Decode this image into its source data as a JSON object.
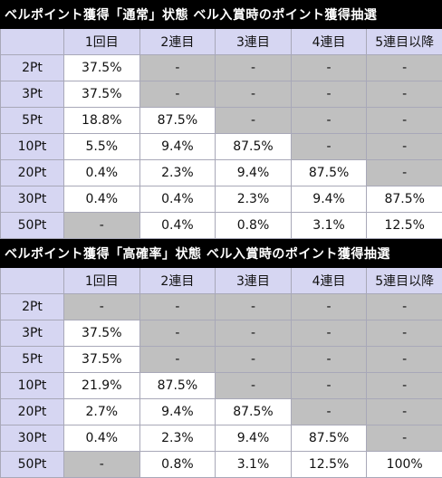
{
  "tables": [
    {
      "title": "ベルポイント獲得「通常」状態 ベル入賞時のポイント獲得抽選",
      "headers": [
        "",
        "1回目",
        "2連目",
        "3連目",
        "4連目",
        "5連目以降"
      ],
      "rows": [
        {
          "label": "2Pt",
          "cells": [
            "37.5%",
            "-",
            "-",
            "-",
            "-"
          ],
          "gray": [
            false,
            true,
            true,
            true,
            true
          ]
        },
        {
          "label": "3Pt",
          "cells": [
            "37.5%",
            "-",
            "-",
            "-",
            "-"
          ],
          "gray": [
            false,
            true,
            true,
            true,
            true
          ]
        },
        {
          "label": "5Pt",
          "cells": [
            "18.8%",
            "87.5%",
            "-",
            "-",
            "-"
          ],
          "gray": [
            false,
            false,
            true,
            true,
            true
          ]
        },
        {
          "label": "10Pt",
          "cells": [
            "5.5%",
            "9.4%",
            "87.5%",
            "-",
            "-"
          ],
          "gray": [
            false,
            false,
            false,
            true,
            true
          ]
        },
        {
          "label": "20Pt",
          "cells": [
            "0.4%",
            "2.3%",
            "9.4%",
            "87.5%",
            "-"
          ],
          "gray": [
            false,
            false,
            false,
            false,
            true
          ]
        },
        {
          "label": "30Pt",
          "cells": [
            "0.4%",
            "0.4%",
            "2.3%",
            "9.4%",
            "87.5%"
          ],
          "gray": [
            false,
            false,
            false,
            false,
            false
          ]
        },
        {
          "label": "50Pt",
          "cells": [
            "-",
            "0.4%",
            "0.8%",
            "3.1%",
            "12.5%"
          ],
          "gray": [
            true,
            false,
            false,
            false,
            false
          ]
        }
      ]
    },
    {
      "title": "ベルポイント獲得「高確率」状態 ベル入賞時のポイント獲得抽選",
      "headers": [
        "",
        "1回目",
        "2連目",
        "3連目",
        "4連目",
        "5連目以降"
      ],
      "rows": [
        {
          "label": "2Pt",
          "cells": [
            "-",
            "-",
            "-",
            "-",
            "-"
          ],
          "gray": [
            true,
            true,
            true,
            true,
            true
          ]
        },
        {
          "label": "3Pt",
          "cells": [
            "37.5%",
            "-",
            "-",
            "-",
            "-"
          ],
          "gray": [
            false,
            true,
            true,
            true,
            true
          ]
        },
        {
          "label": "5Pt",
          "cells": [
            "37.5%",
            "-",
            "-",
            "-",
            "-"
          ],
          "gray": [
            false,
            true,
            true,
            true,
            true
          ]
        },
        {
          "label": "10Pt",
          "cells": [
            "21.9%",
            "87.5%",
            "-",
            "-",
            "-"
          ],
          "gray": [
            false,
            false,
            true,
            true,
            true
          ]
        },
        {
          "label": "20Pt",
          "cells": [
            "2.7%",
            "9.4%",
            "87.5%",
            "-",
            "-"
          ],
          "gray": [
            false,
            false,
            false,
            true,
            true
          ]
        },
        {
          "label": "30Pt",
          "cells": [
            "0.4%",
            "2.3%",
            "9.4%",
            "87.5%",
            "-"
          ],
          "gray": [
            false,
            false,
            false,
            false,
            true
          ]
        },
        {
          "label": "50Pt",
          "cells": [
            "-",
            "0.8%",
            "3.1%",
            "12.5%",
            "100%"
          ],
          "gray": [
            true,
            false,
            false,
            false,
            false
          ]
        }
      ]
    }
  ],
  "colors": {
    "title_bg": "#000000",
    "header_bg": "#d6d6f2",
    "gray_cell": "#c0c0c0",
    "border": "#a8a8b8"
  }
}
